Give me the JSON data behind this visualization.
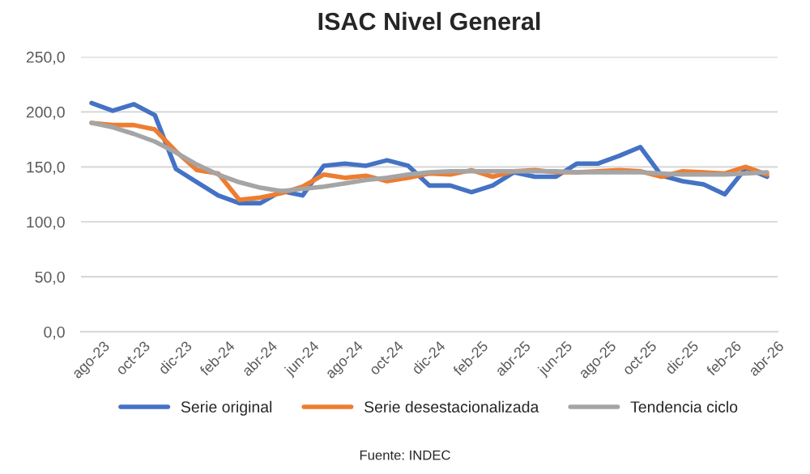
{
  "chart_data": {
    "type": "line",
    "title": "ISAC Nivel General",
    "categories": [
      "ago-23",
      null,
      "oct-23",
      null,
      "dic-23",
      null,
      "feb-24",
      null,
      "abr-24",
      null,
      "jun-24",
      null,
      "ago-24",
      null,
      "oct-24",
      null,
      "dic-24",
      null,
      "feb-25",
      null,
      "abr-25",
      null,
      "jun-25",
      null,
      "ago-25",
      null,
      "oct-25",
      null,
      "dic-25",
      null,
      "feb-26",
      null,
      "abr-26"
    ],
    "series": [
      {
        "name": "Serie original",
        "color": "#4472c4",
        "values": [
          208,
          201,
          207,
          197,
          148,
          136,
          124,
          117,
          117,
          128,
          124,
          151,
          153,
          151,
          156,
          151,
          133,
          133,
          127,
          133,
          145,
          141,
          141,
          153,
          153,
          160,
          168,
          142,
          137,
          134,
          125,
          149,
          141
        ]
      },
      {
        "name": "Serie desestacionalizada",
        "color": "#ed7d31",
        "values": [
          190,
          188,
          188,
          184,
          164,
          147,
          144,
          120,
          122,
          126,
          132,
          143,
          140,
          142,
          137,
          140,
          144,
          143,
          147,
          141,
          146,
          147,
          145,
          145,
          146,
          147,
          146,
          141,
          146,
          145,
          144,
          150,
          143
        ]
      },
      {
        "name": "Tendencia ciclo",
        "color": "#a5a5a5",
        "values": [
          190,
          186,
          180,
          173,
          163,
          152,
          143,
          136,
          131,
          128,
          130,
          132,
          135,
          138,
          140,
          143,
          145,
          146,
          146,
          146,
          146,
          146,
          146,
          145,
          145,
          145,
          145,
          144,
          143,
          143,
          143,
          144,
          145
        ]
      }
    ],
    "ylim": [
      0,
      250
    ],
    "yticks": [
      {
        "value": 0,
        "label": "0,0"
      },
      {
        "value": 50,
        "label": "50,0"
      },
      {
        "value": 100,
        "label": "100,0"
      },
      {
        "value": 150,
        "label": "150,0"
      },
      {
        "value": 200,
        "label": "200,0"
      },
      {
        "value": 250,
        "label": "250,0"
      }
    ],
    "grid": "y",
    "legend": "bottom",
    "marker": "none",
    "line_style": "solid",
    "annotations": [
      "Fuente: INDEC"
    ]
  }
}
